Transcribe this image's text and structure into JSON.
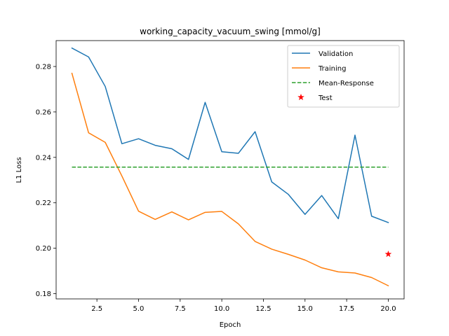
{
  "chart_data": {
    "type": "line",
    "title": "working_capacity_vacuum_swing [mmol/g]",
    "xlabel": "Epoch",
    "ylabel": "L1 Loss",
    "xlim": [
      0.05,
      20.95
    ],
    "ylim": [
      0.1777,
      0.2914
    ],
    "xticks": [
      2.5,
      5.0,
      7.5,
      10.0,
      12.5,
      15.0,
      17.5,
      20.0
    ],
    "xtick_labels": [
      "2.5",
      "5.0",
      "7.5",
      "10.0",
      "12.5",
      "15.0",
      "17.5",
      "20.0"
    ],
    "yticks": [
      0.18,
      0.2,
      0.22,
      0.24,
      0.26,
      0.28
    ],
    "ytick_labels": [
      "0.18",
      "0.20",
      "0.22",
      "0.24",
      "0.26",
      "0.28"
    ],
    "grid": false,
    "legend_position": "upper right",
    "series": [
      {
        "name": "Validation",
        "kind": "line",
        "style": "solid",
        "color": "#1f77b4",
        "x": [
          1,
          2,
          3,
          4,
          5,
          6,
          7,
          8,
          9,
          10,
          11,
          12,
          13,
          14,
          15,
          16,
          17,
          18,
          19,
          20
        ],
        "y": [
          0.2881,
          0.2842,
          0.2712,
          0.246,
          0.2482,
          0.2453,
          0.2438,
          0.2391,
          0.2642,
          0.2425,
          0.2418,
          0.2513,
          0.2292,
          0.2237,
          0.2149,
          0.2232,
          0.213,
          0.2498,
          0.2141,
          0.2113
        ]
      },
      {
        "name": "Training",
        "kind": "line",
        "style": "solid",
        "color": "#ff7f0e",
        "x": [
          1,
          2,
          3,
          4,
          5,
          6,
          7,
          8,
          9,
          10,
          11,
          12,
          13,
          14,
          15,
          16,
          17,
          18,
          19,
          20
        ],
        "y": [
          0.277,
          0.2508,
          0.2466,
          0.2318,
          0.2163,
          0.2127,
          0.216,
          0.2125,
          0.2158,
          0.2162,
          0.2107,
          0.203,
          0.1996,
          0.1973,
          0.1948,
          0.1914,
          0.1896,
          0.1891,
          0.1871,
          0.1835
        ]
      },
      {
        "name": "Mean-Response",
        "kind": "line",
        "style": "dashed",
        "color": "#2ca02c",
        "x": [
          1,
          20
        ],
        "y": [
          0.2357,
          0.2357
        ]
      },
      {
        "name": "Test",
        "kind": "scatter",
        "marker": "star",
        "color": "#ff0000",
        "x": [
          20
        ],
        "y": [
          0.1974
        ]
      }
    ]
  }
}
